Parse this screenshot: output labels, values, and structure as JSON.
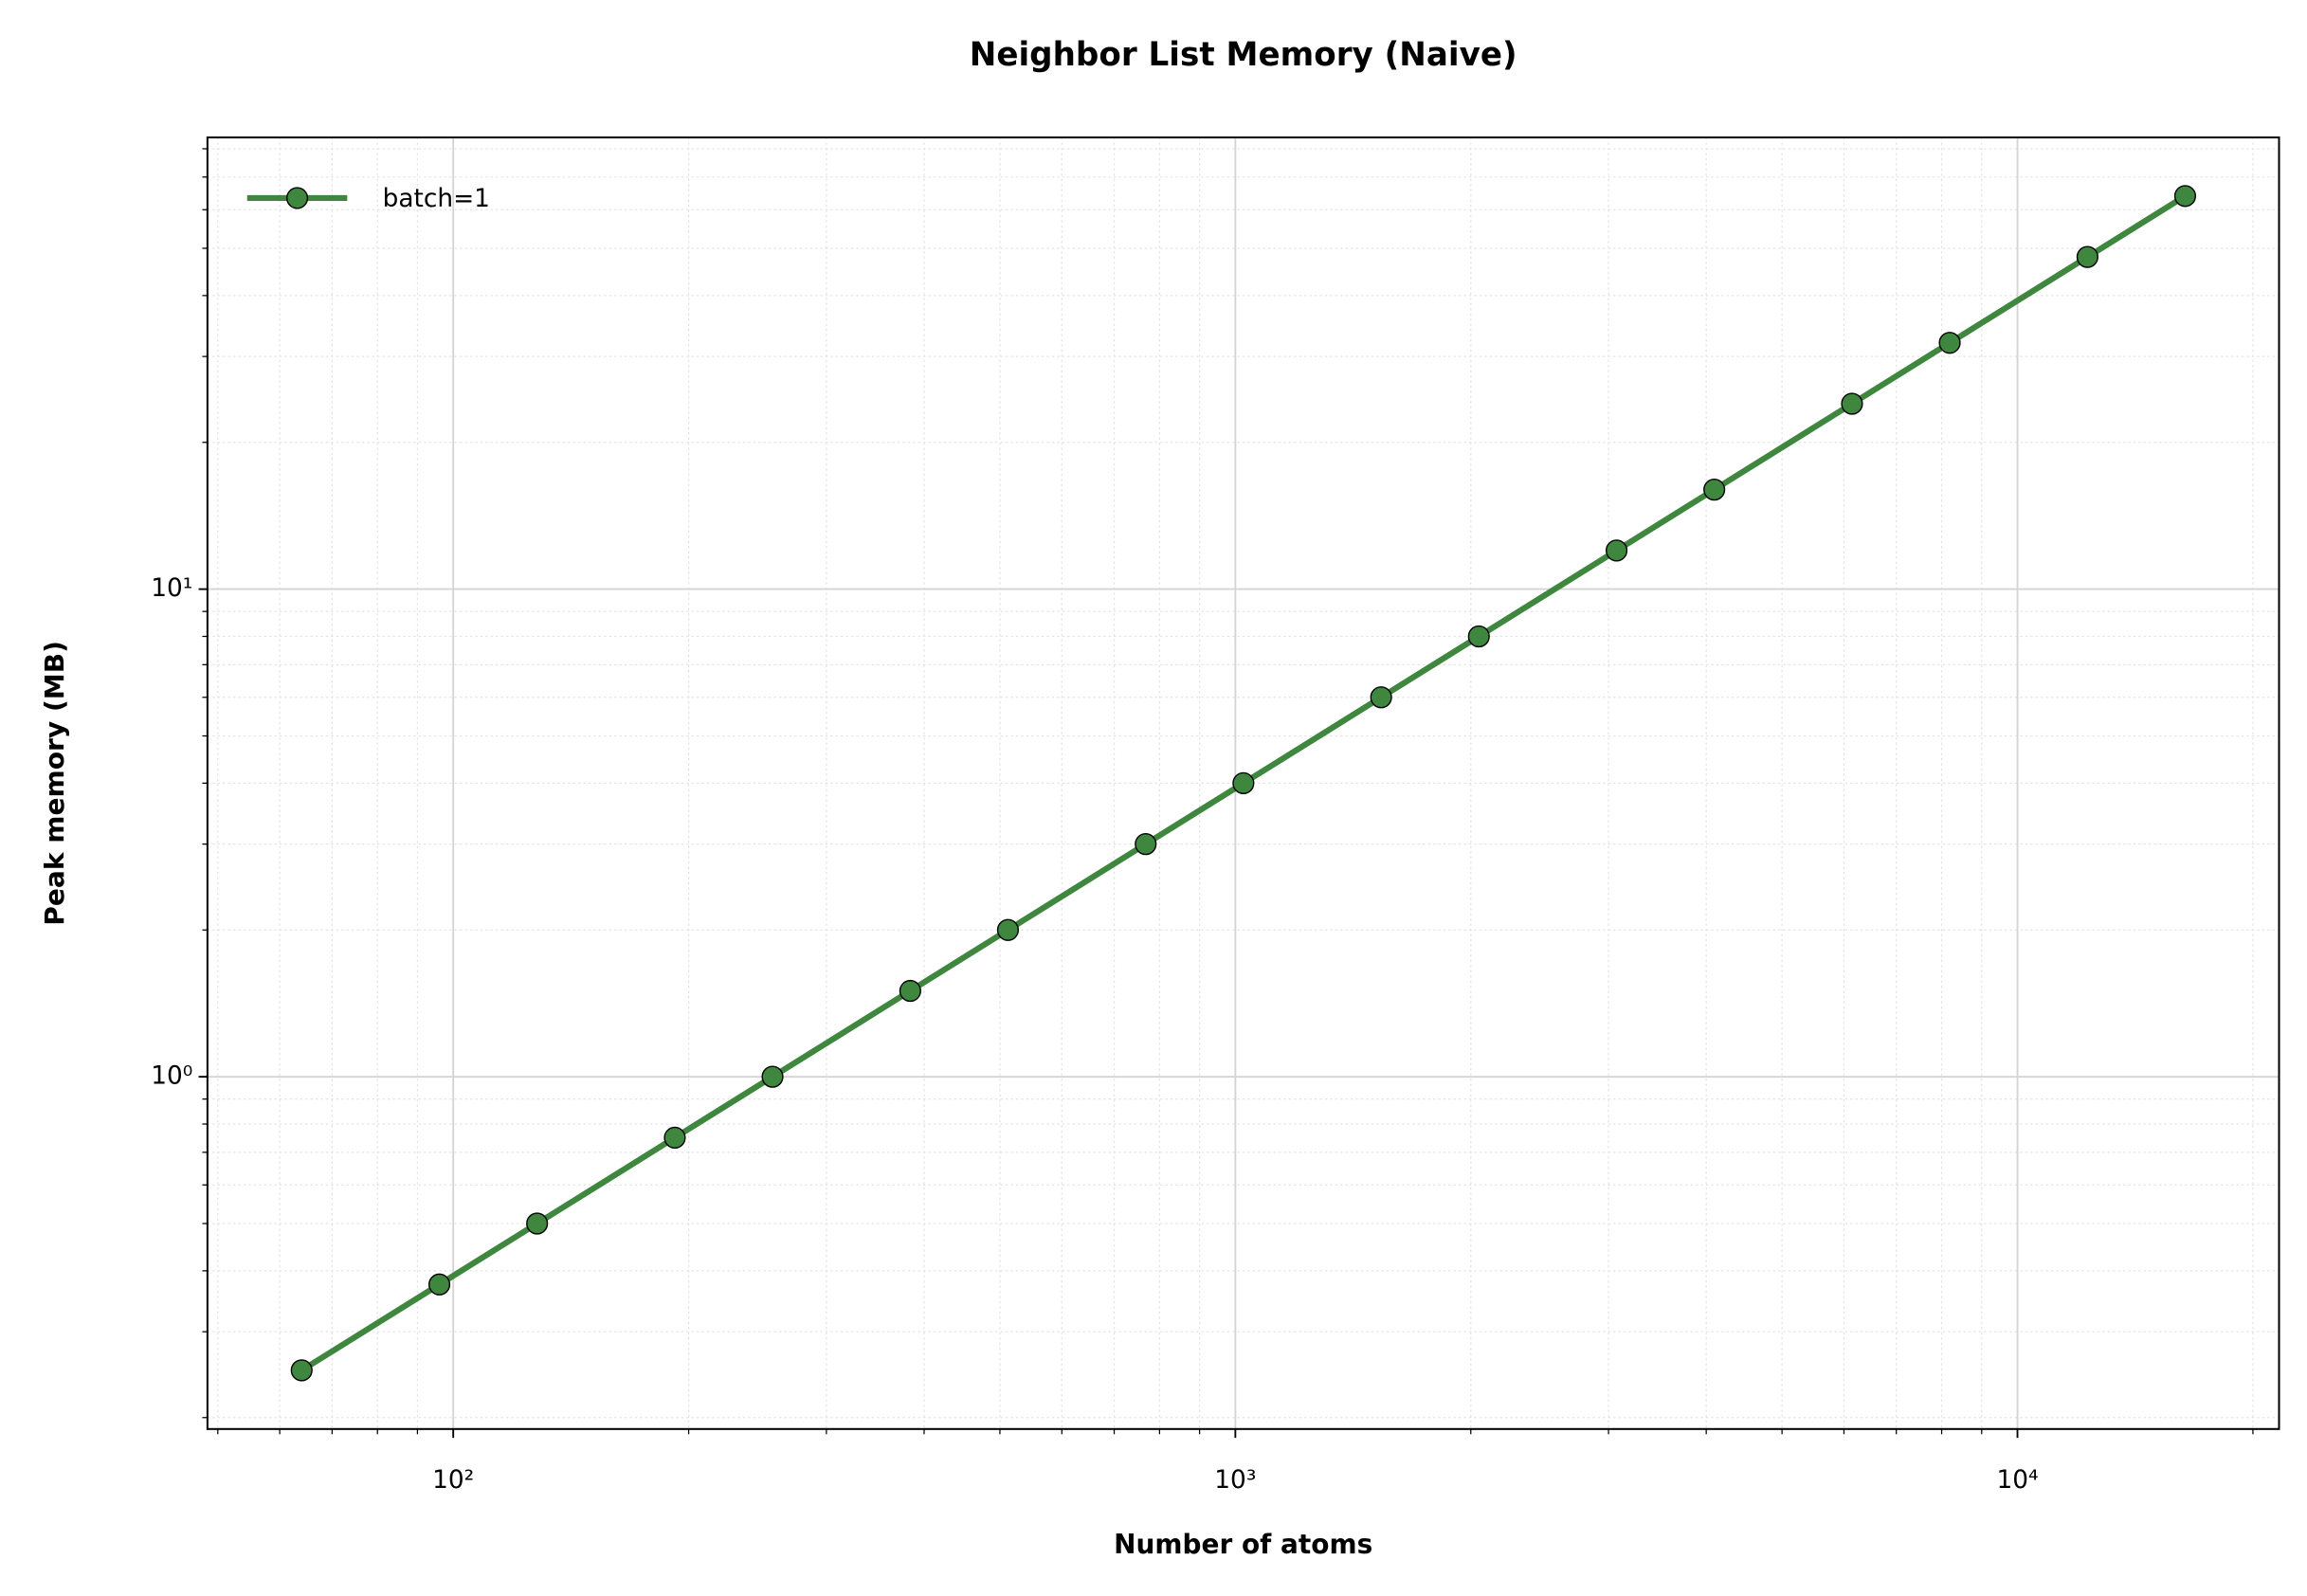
{
  "chart_data": {
    "type": "line",
    "title": "Neighbor List Memory (Naive)",
    "x_label": "Number of atoms",
    "y_label": "Peak memory (MB)",
    "x": [
      64,
      96,
      128,
      192,
      256,
      384,
      512,
      768,
      1024,
      1536,
      2048,
      3072,
      4096,
      6144,
      8192,
      12288,
      16384
    ],
    "series": [
      {
        "name": "batch=1",
        "color": "#3f873f",
        "values": [
          0.25,
          0.375,
          0.5,
          0.75,
          1,
          1.5,
          2,
          3,
          4,
          6,
          8,
          12,
          16,
          24,
          32,
          48,
          64
        ]
      }
    ],
    "xscale": "log",
    "yscale": "log",
    "xlim": [
      48.5,
      21600
    ],
    "ylim": [
      0.1895,
      84.4
    ],
    "xticks": [
      {
        "value": 100,
        "label": "10²"
      },
      {
        "value": 1000,
        "label": "10³"
      },
      {
        "value": 10000,
        "label": "10⁴"
      }
    ],
    "yticks": [
      {
        "value": 1,
        "label": "10⁰"
      },
      {
        "value": 10,
        "label": "10¹"
      }
    ],
    "grid": true,
    "minor_grid": true,
    "legend": "upper left"
  }
}
